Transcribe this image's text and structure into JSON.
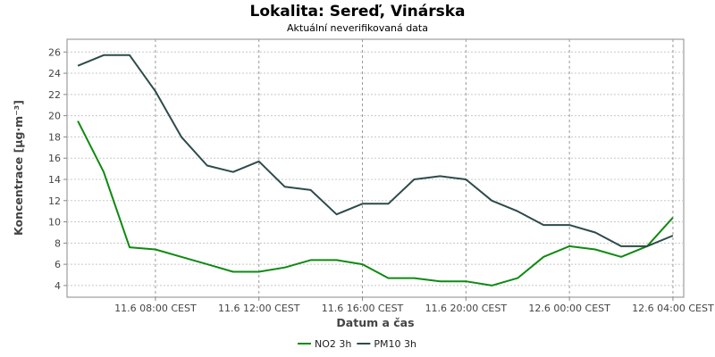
{
  "chart_data": {
    "type": "line",
    "title": "Lokalita: Sereď, Vinárska",
    "subtitle": "Aktuální neverifikovaná data",
    "xlabel": "Datum a čas",
    "ylabel": "Koncentrace [µg·m⁻³]",
    "ylim": [
      2.9,
      27.2
    ],
    "yticks": [
      4,
      6,
      8,
      10,
      12,
      14,
      16,
      18,
      20,
      22,
      24,
      26
    ],
    "x": [
      "11.6 05:00",
      "11.6 06:00",
      "11.6 07:00",
      "11.6 08:00",
      "11.6 09:00",
      "11.6 10:00",
      "11.6 11:00",
      "11.6 12:00",
      "11.6 13:00",
      "11.6 14:00",
      "11.6 15:00",
      "11.6 16:00",
      "11.6 17:00",
      "11.6 18:00",
      "11.6 19:00",
      "11.6 20:00",
      "11.6 21:00",
      "11.6 22:00",
      "11.6 23:00",
      "12.6 00:00",
      "12.6 01:00",
      "12.6 02:00",
      "12.6 03:00",
      "12.6 04:00"
    ],
    "xticks": [
      {
        "at": "11.6 08:00",
        "label": "11.6 08:00 CEST"
      },
      {
        "at": "11.6 12:00",
        "label": "11.6 12:00 CEST"
      },
      {
        "at": "11.6 16:00",
        "label": "11.6 16:00 CEST"
      },
      {
        "at": "11.6 20:00",
        "label": "11.6 20:00 CEST"
      },
      {
        "at": "12.6 00:00",
        "label": "12.6 00:00 CEST"
      },
      {
        "at": "12.6 04:00",
        "label": "12.6 04:00 CEST"
      }
    ],
    "xlim": [
      "11.6 04:35",
      "12.6 04:25"
    ],
    "grid": true,
    "legend_position": "bottom",
    "series": [
      {
        "name": "NO2 3h",
        "color": "#0e8a10",
        "values": [
          19.5,
          14.7,
          7.6,
          7.4,
          6.7,
          6.0,
          5.3,
          5.3,
          5.7,
          6.4,
          6.4,
          6.0,
          4.7,
          4.7,
          4.4,
          4.4,
          4.0,
          4.7,
          6.7,
          7.7,
          7.4,
          6.7,
          7.7,
          10.4
        ]
      },
      {
        "name": "PM10 3h",
        "color": "#2d4b4b",
        "values": [
          24.7,
          25.7,
          25.7,
          22.3,
          18.0,
          15.3,
          14.7,
          15.7,
          13.3,
          13.0,
          10.7,
          11.7,
          11.7,
          14.0,
          14.3,
          14.0,
          12.0,
          11.0,
          9.7,
          9.7,
          9.0,
          7.7,
          7.7,
          8.7
        ]
      }
    ]
  }
}
